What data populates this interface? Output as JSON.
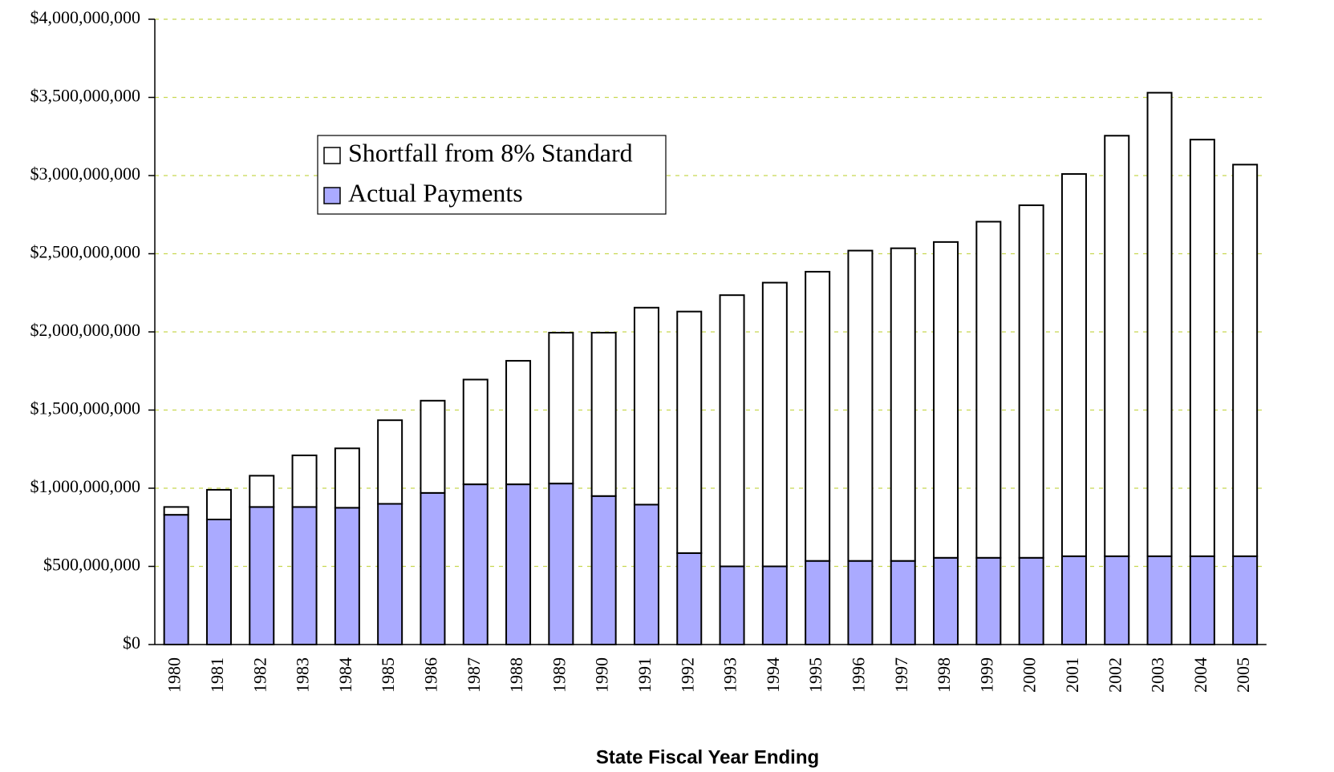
{
  "chart_data": {
    "type": "stacked_bar",
    "x_label": "State Fiscal Year Ending",
    "categories": [
      "1980",
      "1981",
      "1982",
      "1983",
      "1984",
      "1985",
      "1986",
      "1987",
      "1988",
      "1989",
      "1990",
      "1991",
      "1992",
      "1993",
      "1994",
      "1995",
      "1996",
      "1997",
      "1998",
      "1999",
      "2000",
      "2001",
      "2002",
      "2003",
      "2004",
      "2005"
    ],
    "series": [
      {
        "name": "Actual Payments",
        "color": "#aaaaff",
        "values": [
          830000000,
          800000000,
          880000000,
          880000000,
          875000000,
          900000000,
          970000000,
          1025000000,
          1025000000,
          1030000000,
          950000000,
          895000000,
          585000000,
          500000000,
          500000000,
          535000000,
          535000000,
          535000000,
          555000000,
          555000000,
          555000000,
          565000000,
          565000000,
          565000000,
          565000000,
          565000000
        ]
      },
      {
        "name": "Shortfall from 8% Standard",
        "color": "#ffffff",
        "values": [
          50000000,
          190000000,
          200000000,
          330000000,
          380000000,
          535000000,
          590000000,
          670000000,
          790000000,
          965000000,
          1045000000,
          1260000000,
          1545000000,
          1735000000,
          1815000000,
          1850000000,
          1985000000,
          2000000000,
          2020000000,
          2150000000,
          2255000000,
          2445000000,
          2690000000,
          2965000000,
          2665000000,
          2505000000
        ]
      }
    ],
    "legend_order": [
      1,
      0
    ],
    "ylim": [
      0,
      4000000000
    ],
    "yticks": [
      {
        "value": 0,
        "label": "$0"
      },
      {
        "value": 500000000,
        "label": "$500,000,000"
      },
      {
        "value": 1000000000,
        "label": "$1,000,000,000"
      },
      {
        "value": 1500000000,
        "label": "$1,500,000,000"
      },
      {
        "value": 2000000000,
        "label": "$2,000,000,000"
      },
      {
        "value": 2500000000,
        "label": "$2,500,000,000"
      },
      {
        "value": 3000000000,
        "label": "$3,000,000,000"
      },
      {
        "value": 3500000000,
        "label": "$3,500,000,000"
      },
      {
        "value": 4000000000,
        "label": "$4,000,000,000"
      }
    ],
    "grid": true,
    "legend": "upper left"
  }
}
